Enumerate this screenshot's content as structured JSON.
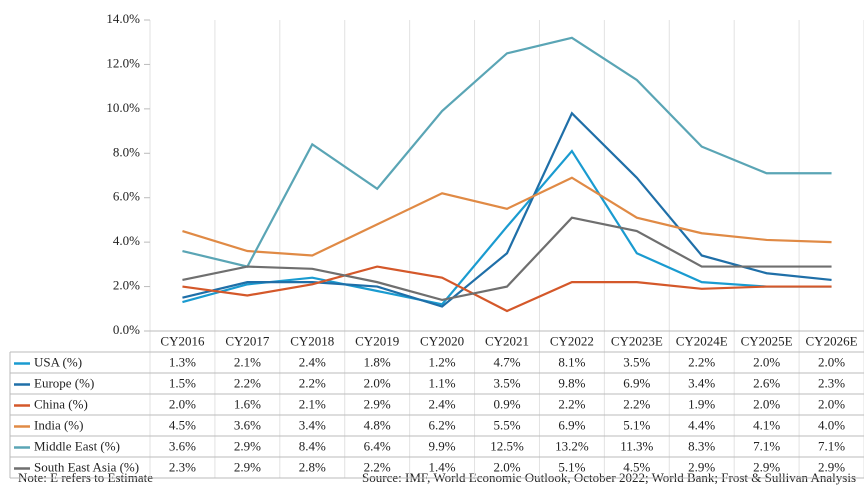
{
  "chart_data": {
    "type": "line",
    "categories": [
      "CY2016",
      "CY2017",
      "CY2018",
      "CY2019",
      "CY2020",
      "CY2021",
      "CY2022",
      "CY2023E",
      "CY2024E",
      "CY2025E",
      "CY2026E"
    ],
    "series": [
      {
        "name": "USA (%)",
        "color": "#1a9bd0",
        "values": [
          1.3,
          2.1,
          2.4,
          1.8,
          1.2,
          4.7,
          8.1,
          3.5,
          2.2,
          2.0,
          2.0
        ],
        "value_labels": [
          "1.3%",
          "2.1%",
          "2.4%",
          "1.8%",
          "1.2%",
          "4.7%",
          "8.1%",
          "3.5%",
          "2.2%",
          "2.0%",
          "2.0%"
        ]
      },
      {
        "name": "Europe (%)",
        "color": "#1f6fa8",
        "values": [
          1.5,
          2.2,
          2.2,
          2.0,
          1.1,
          3.5,
          9.8,
          6.9,
          3.4,
          2.6,
          2.3
        ],
        "value_labels": [
          "1.5%",
          "2.2%",
          "2.2%",
          "2.0%",
          "1.1%",
          "3.5%",
          "9.8%",
          "6.9%",
          "3.4%",
          "2.6%",
          "2.3%"
        ]
      },
      {
        "name": "China (%)",
        "color": "#d4582a",
        "values": [
          2.0,
          1.6,
          2.1,
          2.9,
          2.4,
          0.9,
          2.2,
          2.2,
          1.9,
          2.0,
          2.0
        ],
        "value_labels": [
          "2.0%",
          "1.6%",
          "2.1%",
          "2.9%",
          "2.4%",
          "0.9%",
          "2.2%",
          "2.2%",
          "1.9%",
          "2.0%",
          "2.0%"
        ]
      },
      {
        "name": "India (%)",
        "color": "#e08a45",
        "values": [
          4.5,
          3.6,
          3.4,
          4.8,
          6.2,
          5.5,
          6.9,
          5.1,
          4.4,
          4.1,
          4.0
        ],
        "value_labels": [
          "4.5%",
          "3.6%",
          "3.4%",
          "4.8%",
          "6.2%",
          "5.5%",
          "6.9%",
          "5.1%",
          "4.4%",
          "4.1%",
          "4.0%"
        ]
      },
      {
        "name": "Middle East (%)",
        "color": "#5aa5b5",
        "values": [
          3.6,
          2.9,
          8.4,
          6.4,
          9.9,
          12.5,
          13.2,
          11.3,
          8.3,
          7.1,
          7.1
        ],
        "value_labels": [
          "3.6%",
          "2.9%",
          "8.4%",
          "6.4%",
          "9.9%",
          "12.5%",
          "13.2%",
          "11.3%",
          "8.3%",
          "7.1%",
          "7.1%"
        ]
      },
      {
        "name": "South East Asia (%)",
        "color": "#6f6f6f",
        "values": [
          2.3,
          2.9,
          2.8,
          2.2,
          1.4,
          2.0,
          5.1,
          4.5,
          2.9,
          2.9,
          2.9
        ],
        "value_labels": [
          "2.3%",
          "2.9%",
          "2.8%",
          "2.2%",
          "1.4%",
          "2.0%",
          "5.1%",
          "4.5%",
          "2.9%",
          "2.9%",
          "2.9%"
        ]
      }
    ],
    "ylim": [
      0,
      14
    ],
    "yticks": [
      {
        "value": 0,
        "label": "0.0%"
      },
      {
        "value": 2,
        "label": "2.0%"
      },
      {
        "value": 4,
        "label": "4.0%"
      },
      {
        "value": 6,
        "label": "6.0%"
      },
      {
        "value": 8,
        "label": "8.0%"
      },
      {
        "value": 10,
        "label": "10.0%"
      },
      {
        "value": 12,
        "label": "12.0%"
      },
      {
        "value": 14,
        "label": "14.0%"
      }
    ],
    "note": "Note: E refers to Estimate",
    "source": "Source: IMF, World Economic Outlook, October 2022; World Bank; Frost & Sullivan Analysis"
  }
}
